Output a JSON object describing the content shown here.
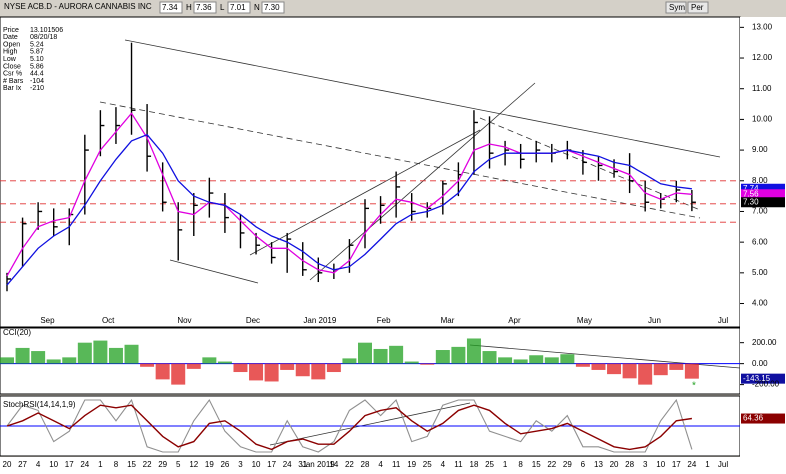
{
  "header": {
    "symbol": "NYSE ACB.D - AURORA CANNABIS INC",
    "fields": [
      "7.34",
      "H",
      "7.36",
      "L",
      "7.01",
      "N",
      "7.30"
    ],
    "buttons": [
      "Sym",
      "Per"
    ]
  },
  "info": [
    [
      "Price",
      "13.101506"
    ],
    [
      "Date",
      "08/20/18"
    ],
    [
      "Open",
      "5.24"
    ],
    [
      "High",
      "5.87"
    ],
    [
      "Low",
      "5.10"
    ],
    [
      "Close",
      "5.86"
    ],
    [
      "Csr %",
      "44.4"
    ],
    [
      "# Bars",
      "-104"
    ],
    [
      "Bar Ix",
      "-210"
    ]
  ],
  "chart_data": [
    {
      "type": "ohlc",
      "month_labels": [
        "Sep",
        "Oct",
        "Nov",
        "Dec",
        "Jan 2019",
        "Feb",
        "Mar",
        "Apr",
        "May",
        "Jun",
        "Jul"
      ],
      "high": [
        5.0,
        6.8,
        7.3,
        7.1,
        7.1,
        9.5,
        10.3,
        10.4,
        12.5,
        10.5,
        8.6,
        7.3,
        7.6,
        8.1,
        7.6,
        6.9,
        6.3,
        6.0,
        6.3,
        6.0,
        5.5,
        5.3,
        6.1,
        7.4,
        7.5,
        8.3,
        7.6,
        7.3,
        8.0,
        8.6,
        10.3,
        10.1,
        9.3,
        9.2,
        9.3,
        9.2,
        9.3,
        9.0,
        8.8,
        8.7,
        8.9,
        8.0,
        7.6,
        8.0,
        7.7,
        null,
        null
      ],
      "low": [
        4.4,
        5.2,
        6.4,
        6.2,
        5.9,
        6.9,
        8.8,
        9.2,
        9.5,
        8.3,
        7.0,
        5.4,
        6.2,
        6.8,
        6.3,
        5.8,
        5.6,
        5.3,
        5.0,
        4.9,
        4.7,
        4.8,
        5.0,
        5.8,
        6.6,
        6.8,
        6.7,
        6.8,
        6.9,
        7.5,
        8.2,
        8.4,
        8.5,
        8.4,
        8.6,
        8.6,
        8.7,
        8.2,
        8.0,
        8.1,
        7.6,
        7.0,
        7.1,
        7.3,
        7.01,
        null,
        null
      ],
      "close": [
        4.8,
        6.6,
        7.0,
        6.5,
        6.9,
        9.0,
        9.8,
        9.8,
        10.3,
        8.8,
        7.3,
        6.4,
        7.2,
        7.6,
        6.8,
        6.3,
        5.9,
        5.5,
        6.1,
        5.1,
        5.0,
        5.1,
        5.9,
        7.1,
        7.2,
        7.8,
        7.0,
        7.1,
        7.9,
        8.2,
        9.9,
        8.9,
        9.0,
        8.7,
        9.0,
        8.9,
        9.0,
        8.6,
        8.5,
        8.3,
        8.0,
        7.3,
        7.4,
        7.7,
        7.3,
        null,
        null
      ],
      "color": "#000000",
      "lines": [
        {
          "color": "#e000e0",
          "values": [
            4.9,
            5.8,
            6.5,
            6.7,
            6.8,
            8.0,
            9.0,
            9.6,
            10.2,
            9.4,
            8.2,
            7.0,
            6.9,
            7.3,
            7.2,
            6.7,
            6.2,
            5.8,
            5.8,
            5.4,
            5.1,
            5.0,
            5.4,
            6.3,
            6.9,
            7.4,
            7.3,
            7.1,
            7.5,
            8.0,
            9.0,
            9.2,
            9.1,
            8.9,
            8.9,
            8.9,
            9.0,
            8.8,
            8.6,
            8.4,
            8.2,
            7.6,
            7.4,
            7.6,
            7.56,
            null,
            null
          ]
        },
        {
          "color": "#1010e0",
          "values": [
            4.6,
            5.2,
            5.8,
            6.2,
            6.5,
            7.2,
            8.0,
            8.7,
            9.3,
            9.5,
            8.9,
            8.0,
            7.5,
            7.3,
            7.2,
            6.9,
            6.5,
            6.2,
            6.0,
            5.7,
            5.3,
            5.1,
            5.2,
            5.6,
            6.1,
            6.6,
            6.9,
            7.0,
            7.2,
            7.6,
            8.3,
            8.7,
            8.9,
            8.9,
            8.9,
            8.9,
            9.0,
            8.9,
            8.8,
            8.6,
            8.5,
            8.2,
            7.9,
            7.8,
            7.74,
            null,
            null
          ]
        }
      ],
      "price_labels": [
        {
          "value": 7.74,
          "label": "7.74",
          "color": "#1010e0"
        },
        {
          "value": 7.56,
          "label": "7.56",
          "color": "#e000e0"
        },
        {
          "value": 7.3,
          "label": "7.30",
          "color": "#000000"
        }
      ],
      "hlines": [
        8.0,
        7.25,
        6.65
      ],
      "hline_color": "#e03030",
      "ylim": [
        3.3,
        13.5
      ],
      "yticks": [
        {
          "value": 13,
          "label": "13.00"
        },
        {
          "value": 12,
          "label": "12.00"
        },
        {
          "value": 11,
          "label": "11.00"
        },
        {
          "value": 10,
          "label": "10.00"
        },
        {
          "value": 9,
          "label": "9.00"
        },
        {
          "value": 8,
          "label": "8.00"
        },
        {
          "value": 7,
          "label": "7.00"
        },
        {
          "value": 6,
          "label": "6.00"
        },
        {
          "value": 5,
          "label": "5.00"
        },
        {
          "value": 4,
          "label": "4.00"
        }
      ]
    },
    {
      "type": "bar",
      "title": "CCI(20)",
      "values": [
        60,
        150,
        120,
        40,
        60,
        200,
        220,
        150,
        180,
        -30,
        -150,
        -200,
        -50,
        60,
        20,
        -80,
        -160,
        -170,
        -60,
        -120,
        -150,
        -80,
        50,
        200,
        140,
        170,
        20,
        -10,
        130,
        160,
        240,
        120,
        60,
        40,
        80,
        60,
        90,
        -30,
        -60,
        -100,
        -140,
        -200,
        -110,
        -60,
        -143.15,
        null,
        null
      ],
      "value_labels": {
        "44": "-143.15"
      },
      "positive_color": "#20a020",
      "negative_color": "#e02020",
      "baseline_color": "#0000ff",
      "ylim": [
        -280,
        340
      ],
      "yticks": [
        {
          "value": 200,
          "label": "200.00"
        },
        {
          "value": 0,
          "label": "0.00"
        },
        {
          "value": -200,
          "label": "-200.00"
        }
      ]
    },
    {
      "type": "line",
      "title": "StochRSI(14,14,1,9)",
      "categories": [
        "20",
        "27",
        "4",
        "10",
        "17",
        "24",
        "1",
        "8",
        "15",
        "22",
        "29",
        "5",
        "12",
        "19",
        "26",
        "3",
        "10",
        "17",
        "24",
        "31",
        "Jan 2019",
        "14",
        "22",
        "28",
        "4",
        "11",
        "19",
        "25",
        "4",
        "11",
        "18",
        "25",
        "1",
        "8",
        "15",
        "22",
        "29",
        "6",
        "13",
        "20",
        "28",
        "3",
        "10",
        "17",
        "24",
        "1",
        "Jul"
      ],
      "series": [
        {
          "color": "#909090",
          "values": [
            50,
            90,
            80,
            20,
            40,
            100,
            100,
            60,
            100,
            10,
            0,
            0,
            60,
            100,
            40,
            10,
            0,
            0,
            60,
            10,
            0,
            20,
            80,
            100,
            70,
            100,
            20,
            30,
            90,
            100,
            100,
            40,
            30,
            20,
            60,
            40,
            70,
            10,
            10,
            0,
            0,
            0,
            60,
            100,
            5,
            null,
            null
          ]
        },
        {
          "color": "#8b0000",
          "values": [
            50,
            60,
            75,
            60,
            45,
            70,
            90,
            85,
            90,
            60,
            30,
            10,
            20,
            55,
            60,
            40,
            15,
            5,
            20,
            25,
            15,
            15,
            40,
            70,
            80,
            85,
            60,
            40,
            55,
            80,
            90,
            80,
            55,
            35,
            40,
            45,
            55,
            40,
            25,
            10,
            5,
            10,
            30,
            60,
            64.36,
            null,
            null
          ],
          "value_labels": {
            "44": "64.36"
          }
        }
      ],
      "midline": 50,
      "midline_color": "#0000ff",
      "ylim": [
        0,
        100
      ]
    }
  ]
}
